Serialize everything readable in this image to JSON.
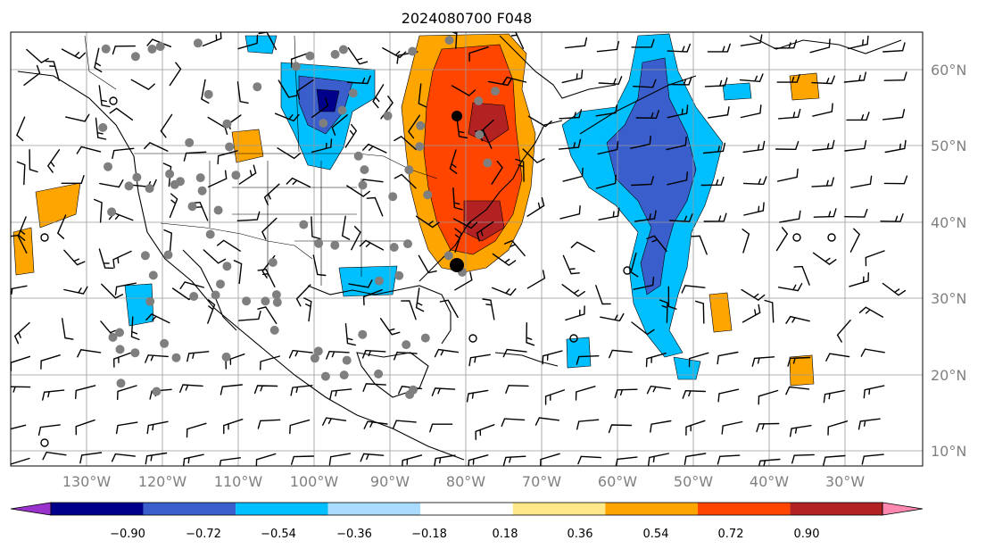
{
  "title": "2024080700 F048",
  "map": {
    "lon_range": [
      -138,
      -17
    ],
    "lat_range": [
      7.5,
      65
    ],
    "lat_ticks": [
      "60°N",
      "50°N",
      "40°N",
      "30°N",
      "20°N",
      "10°N"
    ],
    "lon_ticks": [
      "130°W",
      "120°W",
      "110°W",
      "100°W",
      "90°W",
      "80°W",
      "70°W",
      "60°W",
      "50°W",
      "40°W",
      "30°W"
    ],
    "gridlines": true
  },
  "colorbar": {
    "ticks": [
      "−0.90",
      "−0.72",
      "−0.54",
      "−0.36",
      "−0.18",
      "0.18",
      "0.36",
      "0.54",
      "0.72",
      "0.90"
    ],
    "colors": [
      "#9933cc",
      "#00008b",
      "#3a5fcd",
      "#00bfff",
      "#aadcff",
      "#ffffff",
      "#ffe88a",
      "#ffa500",
      "#ff4500",
      "#b22222",
      "#ff88b0"
    ],
    "extend": "both"
  },
  "legend_colors": {
    "coast": "#000000",
    "station": "#7f7f7f",
    "grid": "#9a9a9a",
    "tick_label": "#808080"
  }
}
